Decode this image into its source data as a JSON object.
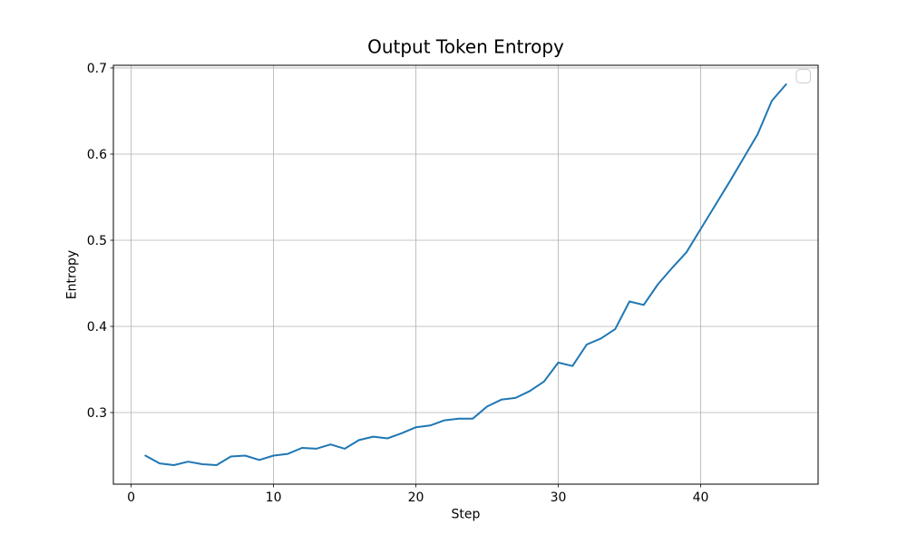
{
  "figure": {
    "background": "#ffffff"
  },
  "chart_data": {
    "type": "line",
    "title": "Output Token Entropy",
    "xlabel": "Step",
    "ylabel": "Entropy",
    "x": [
      1,
      2,
      3,
      4,
      5,
      6,
      7,
      8,
      9,
      10,
      11,
      12,
      13,
      14,
      15,
      16,
      17,
      18,
      19,
      20,
      21,
      22,
      23,
      24,
      25,
      26,
      27,
      28,
      29,
      30,
      31,
      32,
      33,
      34,
      35,
      36,
      37,
      38,
      39,
      40,
      41,
      42,
      43,
      44,
      45,
      46
    ],
    "series": [
      {
        "name": "",
        "color": "#1f77b4",
        "values": [
          0.25,
          0.241,
          0.239,
          0.243,
          0.24,
          0.239,
          0.249,
          0.25,
          0.245,
          0.25,
          0.252,
          0.259,
          0.258,
          0.263,
          0.258,
          0.268,
          0.272,
          0.27,
          0.276,
          0.283,
          0.285,
          0.291,
          0.293,
          0.293,
          0.307,
          0.315,
          0.317,
          0.325,
          0.336,
          0.358,
          0.354,
          0.379,
          0.386,
          0.397,
          0.429,
          0.425,
          0.449,
          0.468,
          0.486,
          0.513,
          0.54,
          0.567,
          0.595,
          0.623,
          0.662,
          0.681
        ]
      }
    ],
    "xlim": [
      -1.25,
      48.25
    ],
    "ylim": [
      0.2169,
      0.7031
    ],
    "xticks": [
      {
        "v": 0,
        "label": "0"
      },
      {
        "v": 10,
        "label": "10"
      },
      {
        "v": 20,
        "label": "20"
      },
      {
        "v": 30,
        "label": "30"
      },
      {
        "v": 40,
        "label": "40"
      }
    ],
    "yticks": [
      {
        "v": 0.3,
        "label": "0.3"
      },
      {
        "v": 0.4,
        "label": "0.4"
      },
      {
        "v": 0.5,
        "label": "0.5"
      },
      {
        "v": 0.6,
        "label": "0.6"
      },
      {
        "v": 0.7,
        "label": "0.7"
      }
    ],
    "grid": true,
    "legend": {
      "visible": true,
      "position": "upper right",
      "entries": []
    },
    "colors": {
      "line": "#1f77b4",
      "grid": "#b0b0b0",
      "spine": "#000000",
      "legend_border": "#cccccc",
      "background": "#ffffff"
    }
  }
}
